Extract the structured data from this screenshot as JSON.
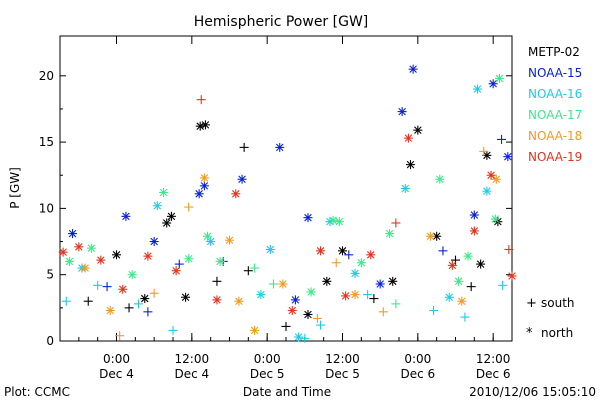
{
  "chart_data": {
    "type": "scatter",
    "title": "Hemispheric Power [GW]",
    "ylabel": "P [GW]",
    "xlabel": "Date and Time",
    "ylim": [
      0,
      23
    ],
    "y_ticks": [
      0,
      5,
      10,
      15,
      20
    ],
    "x_range": [
      "2010-12-03 15:00",
      "2010-12-06 15:00"
    ],
    "x_ticks": [
      {
        "value": "2010-12-04 00:00",
        "line1": "0:00",
        "line2": "Dec 4"
      },
      {
        "value": "2010-12-04 12:00",
        "line1": "12:00",
        "line2": "Dec 4"
      },
      {
        "value": "2010-12-05 00:00",
        "line1": "0:00",
        "line2": "Dec 5"
      },
      {
        "value": "2010-12-05 12:00",
        "line1": "12:00",
        "line2": "Dec 5"
      },
      {
        "value": "2010-12-06 00:00",
        "line1": "0:00",
        "line2": "Dec 6"
      },
      {
        "value": "2010-12-06 12:00",
        "line1": "12:00",
        "line2": "Dec 6"
      }
    ],
    "legend_position": "right",
    "marker_legend": [
      {
        "symbol": "+",
        "label": "south"
      },
      {
        "symbol": "*",
        "label": "north"
      }
    ],
    "footer_left": "Plot: CCMC",
    "footer_right": "2010/12/06 15:05:10",
    "series": [
      {
        "name": "METP-02",
        "color": "#000000",
        "points": [
          [
            "2010-12-03 19:30",
            3.0,
            "+"
          ],
          [
            "2010-12-04 00:00",
            6.5,
            "*"
          ],
          [
            "2010-12-04 04:30",
            3.2,
            "*"
          ],
          [
            "2010-12-04 08:00",
            8.9,
            "*"
          ],
          [
            "2010-12-04 08:45",
            9.4,
            "*"
          ],
          [
            "2010-12-04 13:20",
            16.2,
            "*"
          ],
          [
            "2010-12-04 14:10",
            16.3,
            "*"
          ],
          [
            "2010-12-04 16:00",
            4.5,
            "+"
          ],
          [
            "2010-12-04 20:20",
            14.6,
            "+"
          ],
          [
            "2010-12-05 06:30",
            2.0,
            "*"
          ],
          [
            "2010-12-05 12:00",
            6.8,
            "*"
          ],
          [
            "2010-12-06 00:00",
            15.9,
            "*"
          ],
          [
            "2010-12-05 22:50",
            13.3,
            "*"
          ],
          [
            "2010-12-06 03:00",
            7.9,
            "*"
          ],
          [
            "2010-12-06 06:00",
            6.1,
            "+"
          ],
          [
            "2010-12-06 11:00",
            14.0,
            "*"
          ],
          [
            "2010-12-06 12:45",
            9.0,
            "*"
          ],
          [
            "2010-12-04 02:00",
            2.5,
            "+"
          ],
          [
            "2010-12-05 09:30",
            4.5,
            "*"
          ],
          [
            "2010-12-04 21:00",
            5.3,
            "+"
          ],
          [
            "2010-12-05 17:00",
            3.2,
            "+"
          ],
          [
            "2010-12-05 20:00",
            4.5,
            "*"
          ],
          [
            "2010-12-06 08:30",
            4.1,
            "+"
          ],
          [
            "2010-12-04 11:00",
            3.3,
            "*"
          ],
          [
            "2010-12-05 03:00",
            1.1,
            "+"
          ],
          [
            "2010-12-06 10:00",
            5.8,
            "*"
          ]
        ]
      },
      {
        "name": "NOAA-15",
        "color": "#0a21d6",
        "points": [
          [
            "2010-12-03 17:00",
            8.1,
            "*"
          ],
          [
            "2010-12-04 01:30",
            9.4,
            "*"
          ],
          [
            "2010-12-04 06:00",
            7.5,
            "*"
          ],
          [
            "2010-12-04 13:10",
            11.1,
            "*"
          ],
          [
            "2010-12-04 14:00",
            11.7,
            "*"
          ],
          [
            "2010-12-04 20:00",
            12.2,
            "*"
          ],
          [
            "2010-12-05 02:00",
            14.6,
            "*"
          ],
          [
            "2010-12-05 06:30",
            9.3,
            "*"
          ],
          [
            "2010-12-05 21:30",
            17.3,
            "*"
          ],
          [
            "2010-12-05 23:15",
            20.5,
            "*"
          ],
          [
            "2010-12-06 12:00",
            19.4,
            "*"
          ],
          [
            "2010-12-06 13:20",
            15.2,
            "+"
          ],
          [
            "2010-12-06 14:20",
            13.9,
            "*"
          ],
          [
            "2010-12-06 09:00",
            9.5,
            "*"
          ],
          [
            "2010-12-05 13:00",
            6.5,
            "+"
          ],
          [
            "2010-12-04 10:00",
            5.8,
            "+"
          ],
          [
            "2010-12-05 18:00",
            4.3,
            "*"
          ],
          [
            "2010-12-04 17:00",
            6.0,
            "+"
          ],
          [
            "2010-12-03 22:30",
            4.1,
            "+"
          ],
          [
            "2010-12-05 04:30",
            3.1,
            "*"
          ],
          [
            "2010-12-06 04:00",
            6.8,
            "+"
          ],
          [
            "2010-12-04 05:00",
            2.2,
            "+"
          ]
        ]
      },
      {
        "name": "NOAA-16",
        "color": "#1ecbe6",
        "points": [
          [
            "2010-12-03 16:00",
            3.0,
            "+"
          ],
          [
            "2010-12-03 21:00",
            4.2,
            "+"
          ],
          [
            "2010-12-04 06:30",
            10.2,
            "*"
          ],
          [
            "2010-12-04 15:00",
            7.5,
            "*"
          ],
          [
            "2010-12-05 00:30",
            6.9,
            "*"
          ],
          [
            "2010-12-05 05:00",
            0.3,
            "*"
          ],
          [
            "2010-12-05 06:00",
            0.2,
            "+"
          ],
          [
            "2010-12-05 10:00",
            9.0,
            "*"
          ],
          [
            "2010-12-05 22:00",
            11.5,
            "*"
          ],
          [
            "2010-12-06 09:30",
            19.0,
            "*"
          ],
          [
            "2010-12-06 11:00",
            11.3,
            "*"
          ],
          [
            "2010-12-06 02:30",
            2.3,
            "+"
          ],
          [
            "2010-12-06 07:30",
            1.8,
            "+"
          ],
          [
            "2010-12-04 09:00",
            0.8,
            "+"
          ],
          [
            "2010-12-05 16:00",
            3.5,
            "+"
          ],
          [
            "2010-12-04 23:00",
            3.5,
            "*"
          ],
          [
            "2010-12-06 13:30",
            4.2,
            "+"
          ],
          [
            "2010-12-03 18:30",
            5.5,
            "*"
          ],
          [
            "2010-12-05 14:00",
            5.1,
            "*"
          ],
          [
            "2010-12-04 03:30",
            2.8,
            "+"
          ],
          [
            "2010-12-06 05:00",
            3.3,
            "*"
          ],
          [
            "2010-12-05 08:30",
            1.2,
            "+"
          ]
        ]
      },
      {
        "name": "NOAA-17",
        "color": "#3ee88a",
        "points": [
          [
            "2010-12-03 20:00",
            7.0,
            "*"
          ],
          [
            "2010-12-04 07:30",
            11.2,
            "*"
          ],
          [
            "2010-12-04 16:30",
            6.0,
            "*"
          ],
          [
            "2010-12-05 10:30",
            9.1,
            "*"
          ],
          [
            "2010-12-05 11:30",
            9.0,
            "*"
          ],
          [
            "2010-12-05 19:30",
            8.1,
            "*"
          ],
          [
            "2010-12-06 03:30",
            12.2,
            "*"
          ],
          [
            "2010-12-06 13:00",
            19.8,
            "*"
          ],
          [
            "2010-12-06 12:20",
            9.2,
            "*"
          ],
          [
            "2010-12-04 02:30",
            5.0,
            "*"
          ],
          [
            "2010-12-04 14:30",
            7.9,
            "*"
          ],
          [
            "2010-12-05 15:00",
            5.9,
            "*"
          ],
          [
            "2010-12-05 01:00",
            4.3,
            "+"
          ],
          [
            "2010-12-06 08:00",
            6.4,
            "*"
          ],
          [
            "2010-12-03 16:30",
            6.0,
            "*"
          ],
          [
            "2010-12-04 22:00",
            5.5,
            "+"
          ],
          [
            "2010-12-05 07:00",
            3.7,
            "*"
          ],
          [
            "2010-12-06 06:30",
            4.5,
            "*"
          ],
          [
            "2010-12-04 11:30",
            6.2,
            "*"
          ],
          [
            "2010-12-05 20:30",
            2.8,
            "+"
          ]
        ]
      },
      {
        "name": "NOAA-18",
        "color": "#f29a20",
        "points": [
          [
            "2010-12-03 19:00",
            5.5,
            "*"
          ],
          [
            "2010-12-04 00:30",
            0.4,
            "+"
          ],
          [
            "2010-12-04 11:30",
            10.1,
            "+"
          ],
          [
            "2010-12-04 14:00",
            12.3,
            "*"
          ],
          [
            "2010-12-04 22:00",
            0.8,
            "*"
          ],
          [
            "2010-12-05 08:00",
            1.7,
            "+"
          ],
          [
            "2010-12-05 18:30",
            2.2,
            "+"
          ],
          [
            "2010-12-06 10:30",
            14.3,
            "+"
          ],
          [
            "2010-12-06 12:30",
            12.2,
            "*"
          ],
          [
            "2010-12-04 18:00",
            7.6,
            "*"
          ],
          [
            "2010-12-05 14:00",
            3.5,
            "*"
          ],
          [
            "2010-12-06 02:00",
            7.9,
            "*"
          ],
          [
            "2010-12-03 23:00",
            2.3,
            "*"
          ],
          [
            "2010-12-05 02:30",
            4.3,
            "*"
          ],
          [
            "2010-12-04 06:00",
            3.6,
            "+"
          ],
          [
            "2010-12-06 07:00",
            3.0,
            "*"
          ],
          [
            "2010-12-05 11:00",
            5.9,
            "+"
          ],
          [
            "2010-12-04 19:30",
            3.0,
            "*"
          ]
        ]
      },
      {
        "name": "NOAA-19",
        "color": "#e5321e",
        "points": [
          [
            "2010-12-03 15:30",
            6.7,
            "*"
          ],
          [
            "2010-12-03 18:00",
            7.1,
            "*"
          ],
          [
            "2010-12-04 05:00",
            6.4,
            "*"
          ],
          [
            "2010-12-04 13:30",
            18.2,
            "+"
          ],
          [
            "2010-12-04 19:00",
            11.1,
            "*"
          ],
          [
            "2010-12-05 08:30",
            6.8,
            "*"
          ],
          [
            "2010-12-05 20:30",
            8.9,
            "+"
          ],
          [
            "2010-12-05 22:30",
            15.3,
            "*"
          ],
          [
            "2010-12-06 11:40",
            12.5,
            "*"
          ],
          [
            "2010-12-06 15:00",
            4.9,
            "*"
          ],
          [
            "2010-12-06 14:30",
            6.9,
            "+"
          ],
          [
            "2010-12-04 09:30",
            5.3,
            "*"
          ],
          [
            "2010-12-05 04:00",
            2.3,
            "*"
          ],
          [
            "2010-12-05 16:30",
            6.5,
            "*"
          ],
          [
            "2010-12-04 01:00",
            3.9,
            "*"
          ],
          [
            "2010-12-05 12:30",
            3.4,
            "*"
          ],
          [
            "2010-12-06 05:30",
            5.7,
            "*"
          ],
          [
            "2010-12-04 16:00",
            3.1,
            "*"
          ],
          [
            "2010-12-03 21:30",
            6.1,
            "*"
          ],
          [
            "2010-12-06 09:00",
            8.3,
            "*"
          ]
        ]
      }
    ]
  }
}
